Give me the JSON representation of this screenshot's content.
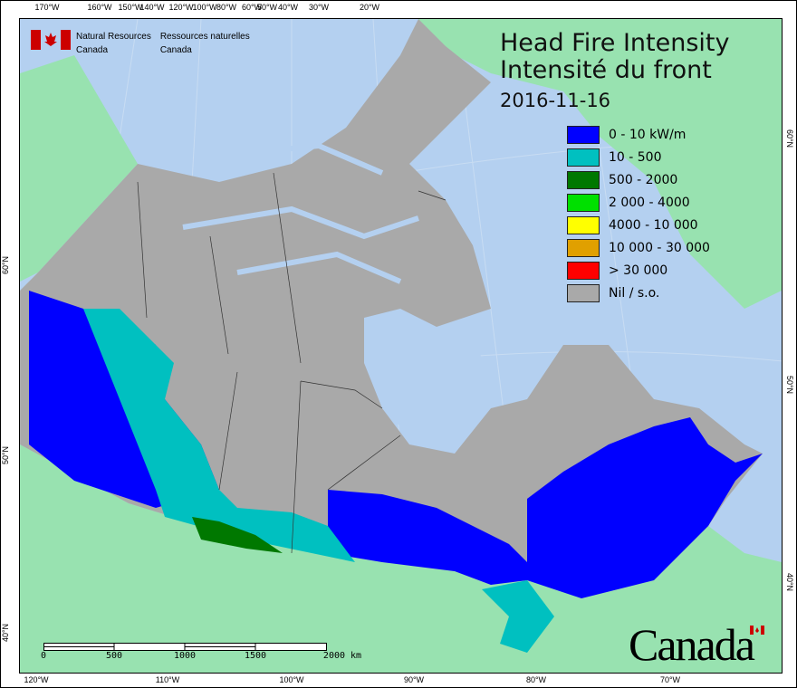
{
  "organization": {
    "en_line1": "Natural Resources",
    "en_line2": "Canada",
    "fr_line1": "Ressources naturelles",
    "fr_line2": "Canada"
  },
  "title": {
    "en": "Head Fire Intensity",
    "fr": "Intensité du front",
    "date": "2016-11-16"
  },
  "legend": [
    {
      "label": "0 - 10 kW/m",
      "color": "#0000ff"
    },
    {
      "label": "10 - 500",
      "color": "#00c0c0"
    },
    {
      "label": "500 - 2000",
      "color": "#007800"
    },
    {
      "label": "2 000 - 4000",
      "color": "#00e000"
    },
    {
      "label": "4000 - 10 000",
      "color": "#ffff00"
    },
    {
      "label": "10 000 - 30 000",
      "color": "#e0a000"
    },
    {
      "label": "> 30 000",
      "color": "#ff0000"
    },
    {
      "label": "Nil / s.o.",
      "color": "#a9a9a9"
    }
  ],
  "graticule": {
    "top": [
      "170°W",
      "160°W",
      "150°W",
      "140°W",
      "120°W",
      "100°W",
      "80°W",
      "60°W",
      "50°W",
      "40°W",
      "30°W",
      "20°W"
    ],
    "bottom": [
      "120°W",
      "110°W",
      "100°W",
      "90°W",
      "80°W",
      "70°W"
    ],
    "left": [
      "60°N",
      "50°N",
      "40°N"
    ],
    "right": [
      "60°N",
      "50°N",
      "40°N"
    ]
  },
  "scale_bar": {
    "labels": [
      "0",
      "500",
      "1000",
      "1500",
      "2000  km"
    ]
  },
  "wordmark": "Canada",
  "colors": {
    "water": "#b4d0f0",
    "foreign_land": "#98e2b0",
    "canada_nil": "#a9a9a9",
    "flag_red": "#cc0000"
  }
}
